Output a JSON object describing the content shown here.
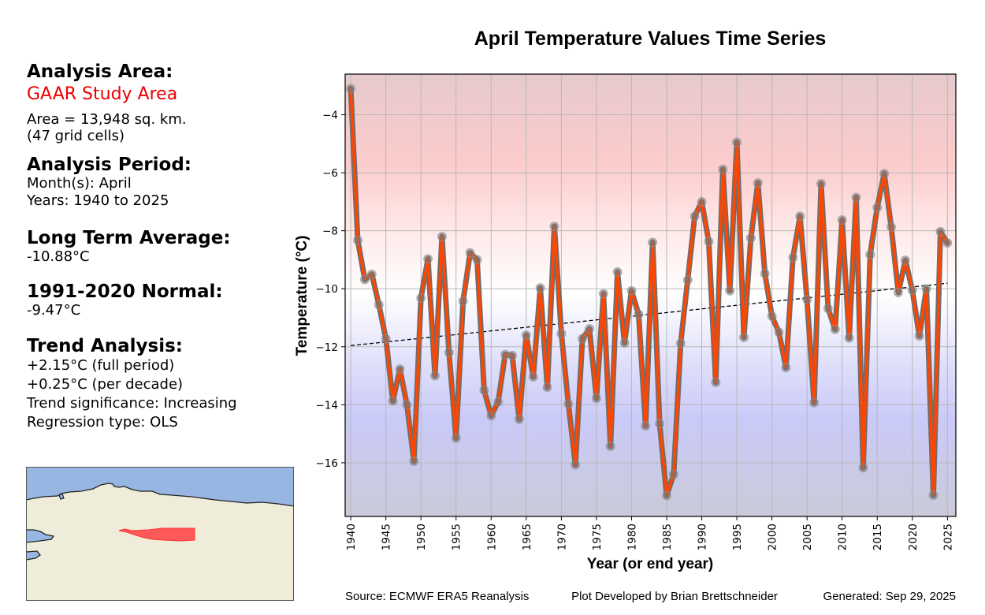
{
  "sidebar": {
    "analysis_area_heading": "Analysis Area:",
    "area_name": "GAAR Study Area",
    "area_size": "Area = 13,948 sq. km.",
    "grid_cells": "(47 grid cells)",
    "period_heading": "Analysis Period:",
    "months": "Month(s): April",
    "years": "Years: 1940 to 2025",
    "lta_heading": "Long Term Average:",
    "lta_value": "-10.88°C",
    "normal_heading": "1991-2020 Normal:",
    "normal_value": "-9.47°C",
    "trend_heading": "Trend Analysis:",
    "trend_full": "+2.15°C (full period)",
    "trend_decade": "+0.25°C (per decade)",
    "trend_sig": "Trend significance: Increasing",
    "regression": "Regression type: OLS"
  },
  "map": {
    "ocean_color": "#97b6e1",
    "land_color": "#efedda",
    "area_color": "#ff4444"
  },
  "footer": {
    "source": "Source: ECMWF ERA5 Reanalysis",
    "credit": "Plot Developed by Brian Brettschneider",
    "generated": "Generated: Sep 29, 2025"
  },
  "chart_data": {
    "type": "line",
    "title": "April Temperature Values Time Series",
    "xlabel": "Year (or end year)",
    "ylabel": "Temperature (°C)",
    "xlim": [
      1939.2,
      2026.2
    ],
    "ylim": [
      -17.85,
      -2.6
    ],
    "grid": true,
    "xticks": [
      1940,
      1945,
      1950,
      1955,
      1960,
      1965,
      1970,
      1975,
      1980,
      1985,
      1990,
      1995,
      2000,
      2005,
      2010,
      2015,
      2020,
      2025
    ],
    "yticks": [
      -16,
      -14,
      -12,
      -10,
      -8,
      -6,
      -4
    ],
    "ytick_labels": [
      "−16",
      "−14",
      "−12",
      "−10",
      "−8",
      "−6",
      "−4"
    ],
    "line_color": "#ff4500",
    "line_outline_color": "#707070",
    "trend": {
      "start_year": 1940,
      "end_year": 2025,
      "start_value": -11.96,
      "end_value": -9.81
    },
    "x": [
      1940,
      1941,
      1942,
      1943,
      1944,
      1945,
      1946,
      1947,
      1948,
      1949,
      1950,
      1951,
      1952,
      1953,
      1954,
      1955,
      1956,
      1957,
      1958,
      1959,
      1960,
      1961,
      1962,
      1963,
      1964,
      1965,
      1966,
      1967,
      1968,
      1969,
      1970,
      1971,
      1972,
      1973,
      1974,
      1975,
      1976,
      1977,
      1978,
      1979,
      1980,
      1981,
      1982,
      1983,
      1984,
      1985,
      1986,
      1987,
      1988,
      1989,
      1990,
      1991,
      1992,
      1993,
      1994,
      1995,
      1996,
      1997,
      1998,
      1999,
      2000,
      2001,
      2002,
      2003,
      2004,
      2005,
      2006,
      2007,
      2008,
      2009,
      2010,
      2011,
      2012,
      2013,
      2014,
      2015,
      2016,
      2017,
      2018,
      2019,
      2020,
      2021,
      2022,
      2023,
      2024,
      2025
    ],
    "values": [
      -3.1,
      -8.33,
      -9.68,
      -9.5,
      -10.55,
      -11.72,
      -13.87,
      -12.77,
      -14.0,
      -15.95,
      -10.32,
      -8.97,
      -13.0,
      -8.2,
      -12.2,
      -15.15,
      -10.43,
      -8.76,
      -9.0,
      -13.5,
      -14.38,
      -13.9,
      -12.27,
      -12.3,
      -14.5,
      -11.6,
      -13.04,
      -9.97,
      -13.4,
      -7.85,
      -11.55,
      -13.97,
      -16.07,
      -11.72,
      -11.38,
      -13.78,
      -10.17,
      -15.43,
      -9.42,
      -11.87,
      -10.07,
      -10.88,
      -14.73,
      -8.4,
      -14.65,
      -17.13,
      -16.4,
      -11.88,
      -9.7,
      -7.5,
      -7.0,
      -8.37,
      -13.23,
      -5.88,
      -10.07,
      -4.95,
      -11.68,
      -8.25,
      -6.35,
      -9.48,
      -10.95,
      -11.5,
      -12.72,
      -8.92,
      -7.5,
      -10.37,
      -13.93,
      -6.38,
      -10.68,
      -11.4,
      -7.63,
      -11.7,
      -6.85,
      -16.17,
      -8.82,
      -7.2,
      -6.03,
      -7.87,
      -10.13,
      -9.02,
      -10.05,
      -11.63,
      -10.0,
      -17.12,
      -8.03,
      -8.42
    ]
  }
}
